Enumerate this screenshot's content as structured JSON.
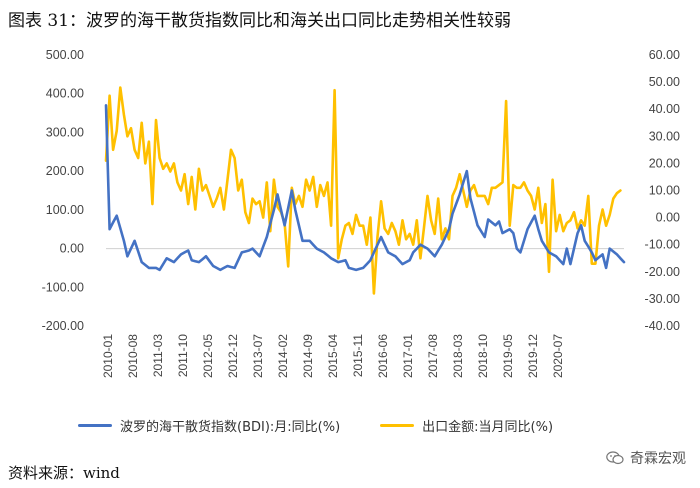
{
  "title": "图表 31：波罗的海干散货指数同比和海关出口同比走势相关性较弱",
  "source": "资料来源：wind",
  "brand": "奇霖宏观",
  "colors": {
    "bdi": "#4472C4",
    "export": "#FFC000"
  },
  "chart_data": {
    "type": "line",
    "x_tick_labels": [
      "2010-01",
      "2010-08",
      "2011-03",
      "2011-10",
      "2012-05",
      "2012-12",
      "2013-07",
      "2014-02",
      "2014-09",
      "2015-04",
      "2015-11",
      "2016-06",
      "2017-01",
      "2017-08",
      "2018-03",
      "2018-10",
      "2019-05",
      "2019-12",
      "2020-07"
    ],
    "y_left": {
      "range": [
        -200,
        500
      ],
      "ticks": [
        "500.00",
        "400.00",
        "300.00",
        "200.00",
        "100.00",
        "0.00",
        "-100.00",
        "-200.00"
      ]
    },
    "y_right": {
      "range": [
        -40,
        60
      ],
      "ticks": [
        "60.00",
        "50.00",
        "40.00",
        "30.00",
        "20.00",
        "10.00",
        "0.00",
        "-10.00",
        "-20.00",
        "-30.00",
        "-40.00"
      ]
    },
    "series": [
      {
        "name": "波罗的海干散货指数(BDI):月:同比(%)",
        "axis": "left",
        "anchors": [
          [
            0,
            370
          ],
          [
            1,
            50
          ],
          [
            3,
            85
          ],
          [
            5,
            20
          ],
          [
            6,
            -20
          ],
          [
            8,
            20
          ],
          [
            10,
            -35
          ],
          [
            12,
            -50
          ],
          [
            14,
            -50
          ],
          [
            15,
            -55
          ],
          [
            17,
            -25
          ],
          [
            19,
            -35
          ],
          [
            21,
            -15
          ],
          [
            23,
            -5
          ],
          [
            24,
            -30
          ],
          [
            26,
            -35
          ],
          [
            28,
            -20
          ],
          [
            30,
            -45
          ],
          [
            32,
            -55
          ],
          [
            34,
            -45
          ],
          [
            36,
            -50
          ],
          [
            38,
            -10
          ],
          [
            40,
            -5
          ],
          [
            41,
            0
          ],
          [
            43,
            -20
          ],
          [
            45,
            30
          ],
          [
            47,
            100
          ],
          [
            48,
            140
          ],
          [
            50,
            60
          ],
          [
            52,
            150
          ],
          [
            53,
            100
          ],
          [
            55,
            20
          ],
          [
            57,
            20
          ],
          [
            59,
            0
          ],
          [
            61,
            -10
          ],
          [
            63,
            -25
          ],
          [
            65,
            -35
          ],
          [
            67,
            -30
          ],
          [
            68,
            -50
          ],
          [
            70,
            -55
          ],
          [
            72,
            -50
          ],
          [
            74,
            -30
          ],
          [
            76,
            10
          ],
          [
            77,
            30
          ],
          [
            79,
            -10
          ],
          [
            81,
            -20
          ],
          [
            83,
            -40
          ],
          [
            85,
            -30
          ],
          [
            86,
            -10
          ],
          [
            88,
            10
          ],
          [
            90,
            0
          ],
          [
            92,
            -20
          ],
          [
            94,
            10
          ],
          [
            96,
            50
          ],
          [
            97,
            90
          ],
          [
            99,
            140
          ],
          [
            101,
            200
          ],
          [
            102,
            130
          ],
          [
            104,
            60
          ],
          [
            106,
            30
          ],
          [
            107,
            75
          ],
          [
            109,
            60
          ],
          [
            110,
            70
          ],
          [
            111,
            40
          ],
          [
            113,
            50
          ],
          [
            114,
            40
          ],
          [
            115,
            0
          ],
          [
            116,
            -10
          ],
          [
            118,
            50
          ],
          [
            120,
            85
          ],
          [
            121,
            50
          ],
          [
            122,
            20
          ],
          [
            124,
            -10
          ],
          [
            126,
            -20
          ],
          [
            128,
            -40
          ],
          [
            129,
            0
          ],
          [
            130,
            -40
          ],
          [
            132,
            40
          ],
          [
            133,
            60
          ],
          [
            134,
            20
          ],
          [
            136,
            -10
          ],
          [
            137,
            -30
          ],
          [
            139,
            -15
          ],
          [
            140,
            -50
          ],
          [
            141,
            0
          ],
          [
            143,
            -15
          ],
          [
            145,
            -35
          ]
        ]
      },
      {
        "name": "出口金额:当月同比(%)",
        "axis": "right",
        "anchors": [
          [
            0,
            21
          ],
          [
            1,
            45
          ],
          [
            2,
            25
          ],
          [
            3,
            32
          ],
          [
            4,
            48
          ],
          [
            5,
            38
          ],
          [
            6,
            30
          ],
          [
            7,
            33
          ],
          [
            8,
            25
          ],
          [
            9,
            22
          ],
          [
            10,
            35
          ],
          [
            11,
            20
          ],
          [
            12,
            28
          ],
          [
            13,
            5
          ],
          [
            14,
            36
          ],
          [
            15,
            22
          ],
          [
            16,
            18
          ],
          [
            17,
            20
          ],
          [
            18,
            17
          ],
          [
            19,
            20
          ],
          [
            20,
            13
          ],
          [
            21,
            10
          ],
          [
            22,
            16
          ],
          [
            23,
            5
          ],
          [
            24,
            15
          ],
          [
            25,
            3
          ],
          [
            26,
            18
          ],
          [
            27,
            10
          ],
          [
            28,
            12
          ],
          [
            29,
            8
          ],
          [
            30,
            4
          ],
          [
            31,
            7
          ],
          [
            32,
            11
          ],
          [
            33,
            3
          ],
          [
            34,
            14
          ],
          [
            35,
            25
          ],
          [
            36,
            22
          ],
          [
            37,
            10
          ],
          [
            38,
            14
          ],
          [
            39,
            2
          ],
          [
            40,
            -2
          ],
          [
            41,
            7
          ],
          [
            42,
            5
          ],
          [
            43,
            6
          ],
          [
            44,
            0
          ],
          [
            45,
            13
          ],
          [
            46,
            -5
          ],
          [
            47,
            14
          ],
          [
            48,
            4
          ],
          [
            49,
            2
          ],
          [
            50,
            -2
          ],
          [
            51,
            -18
          ],
          [
            52,
            11
          ],
          [
            53,
            5
          ],
          [
            54,
            8
          ],
          [
            55,
            4
          ],
          [
            56,
            14
          ],
          [
            57,
            10
          ],
          [
            58,
            15
          ],
          [
            59,
            4
          ],
          [
            60,
            12
          ],
          [
            61,
            8
          ],
          [
            62,
            13
          ],
          [
            63,
            -3
          ],
          [
            64,
            47
          ],
          [
            65,
            -15
          ],
          [
            66,
            -8
          ],
          [
            67,
            -3
          ],
          [
            68,
            -2
          ],
          [
            69,
            -6
          ],
          [
            70,
            1
          ],
          [
            71,
            -3
          ],
          [
            72,
            -3
          ],
          [
            73,
            -10
          ],
          [
            74,
            0
          ],
          [
            75,
            -28
          ],
          [
            76,
            -7
          ],
          [
            77,
            6
          ],
          [
            78,
            -4
          ],
          [
            79,
            -6
          ],
          [
            80,
            -2
          ],
          [
            81,
            -5
          ],
          [
            82,
            -10
          ],
          [
            83,
            -1
          ],
          [
            84,
            -8
          ],
          [
            85,
            -6
          ],
          [
            86,
            -10
          ],
          [
            87,
            -1
          ],
          [
            88,
            -15
          ],
          [
            89,
            -4
          ],
          [
            90,
            8
          ],
          [
            91,
            -1
          ],
          [
            92,
            -6
          ],
          [
            93,
            7
          ],
          [
            94,
            -8
          ],
          [
            95,
            -4
          ],
          [
            96,
            -8
          ],
          [
            97,
            8
          ],
          [
            98,
            11
          ],
          [
            99,
            16
          ],
          [
            100,
            10
          ],
          [
            101,
            4
          ],
          [
            102,
            10
          ],
          [
            103,
            12
          ],
          [
            104,
            8
          ],
          [
            105,
            8
          ],
          [
            106,
            8
          ],
          [
            107,
            5
          ],
          [
            108,
            11
          ],
          [
            109,
            11
          ],
          [
            110,
            12
          ],
          [
            111,
            13
          ],
          [
            112,
            43
          ],
          [
            113,
            -3
          ],
          [
            114,
            12
          ],
          [
            115,
            11
          ],
          [
            116,
            11
          ],
          [
            117,
            13
          ],
          [
            118,
            10
          ],
          [
            119,
            8
          ],
          [
            120,
            3
          ],
          [
            121,
            11
          ],
          [
            122,
            -2
          ],
          [
            123,
            5
          ],
          [
            124,
            -20
          ],
          [
            125,
            14
          ],
          [
            126,
            -5
          ],
          [
            127,
            1
          ],
          [
            128,
            -5
          ],
          [
            129,
            -2
          ],
          [
            130,
            -1
          ],
          [
            131,
            2
          ],
          [
            132,
            -4
          ],
          [
            133,
            -1
          ],
          [
            134,
            -3
          ],
          [
            135,
            8
          ],
          [
            136,
            -17
          ],
          [
            137,
            -17
          ],
          [
            138,
            -3
          ],
          [
            139,
            3
          ],
          [
            140,
            -3
          ],
          [
            141,
            1
          ],
          [
            142,
            7
          ],
          [
            143,
            9
          ],
          [
            144,
            10
          ]
        ]
      }
    ]
  }
}
